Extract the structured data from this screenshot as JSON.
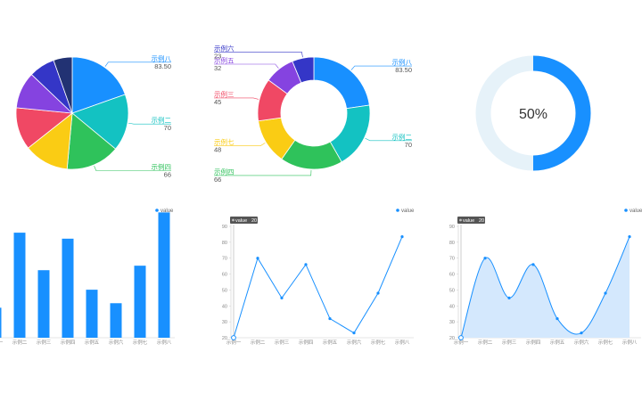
{
  "colors": {
    "palette": [
      "#1890ff",
      "#13c2c2",
      "#2fc25b",
      "#facc14",
      "#f04864",
      "#8543e0",
      "#3436c7",
      "#223273"
    ],
    "primary": "#1890ff",
    "gauge_track": "#e6f2f9",
    "area_fill": "#d4e8fd"
  },
  "chart_data": [
    {
      "type": "pie",
      "labels": [
        "示例八",
        "示例二",
        "示例四",
        "",
        "",
        "",
        "",
        ""
      ],
      "values": [
        83.5,
        70,
        66,
        55,
        52,
        45,
        32,
        23
      ]
    },
    {
      "type": "pie",
      "variant": "donut",
      "labels": [
        "示例八",
        "示例二",
        "示例四",
        "示例七",
        "示例三",
        "示例五",
        "示例六"
      ],
      "values": [
        83.5,
        70,
        66,
        48,
        45,
        32,
        23
      ]
    },
    {
      "type": "gauge",
      "value": 50,
      "label": "50%"
    },
    {
      "type": "bar",
      "legend": [
        "value"
      ],
      "legend_position": "top-right",
      "categories": [
        "示例一",
        "示例二",
        "示例三",
        "示例四",
        "示例五",
        "示例六",
        "示例七",
        "示例八"
      ],
      "values": [
        20,
        70,
        45,
        66,
        32,
        23,
        48,
        83.5
      ],
      "ylim": [
        0,
        95
      ]
    },
    {
      "type": "line",
      "legend": [
        "value"
      ],
      "legend_position": "top-right",
      "categories": [
        "示例一",
        "示例二",
        "示例三",
        "示例四",
        "示例五",
        "示例六",
        "示例七",
        "示例八"
      ],
      "values": [
        20,
        70,
        45,
        66,
        32,
        23,
        48,
        83.5
      ],
      "yticks": [
        20,
        30,
        40,
        50,
        60,
        70,
        80,
        90
      ],
      "ylim": [
        20,
        90
      ],
      "tooltip": {
        "label": "value",
        "value": "20"
      }
    },
    {
      "type": "area",
      "smooth": true,
      "legend": [
        "value"
      ],
      "legend_position": "top-right",
      "categories": [
        "示例一",
        "示例二",
        "示例三",
        "示例四",
        "示例五",
        "示例六",
        "示例七",
        "示例八"
      ],
      "values": [
        20,
        70,
        45,
        66,
        32,
        23,
        48,
        83.5
      ],
      "yticks": [
        20,
        30,
        40,
        50,
        60,
        70,
        80,
        90
      ],
      "ylim": [
        20,
        90
      ],
      "tooltip": {
        "label": "value",
        "value": "20"
      }
    }
  ]
}
